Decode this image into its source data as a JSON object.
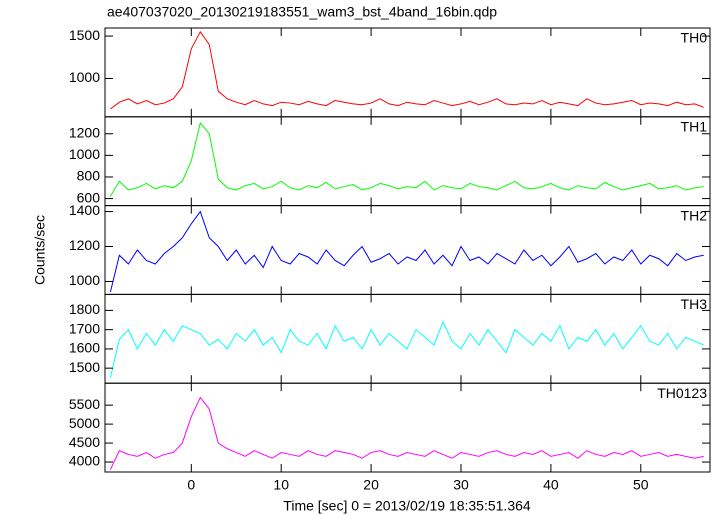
{
  "chart_data": [
    {
      "type": "line",
      "title": "ae407037020_20130219183551_wam3_bst_4band_16bin.qdp",
      "x": [
        -9,
        -8,
        -7,
        -6,
        -5,
        -4,
        -3,
        -2,
        -1,
        0,
        1,
        2,
        3,
        4,
        5,
        6,
        7,
        8,
        9,
        10,
        11,
        12,
        13,
        14,
        15,
        16,
        17,
        18,
        19,
        20,
        21,
        22,
        23,
        24,
        25,
        26,
        27,
        28,
        29,
        30,
        31,
        32,
        33,
        34,
        35,
        36,
        37,
        38,
        39,
        40,
        41,
        42,
        43,
        44,
        45,
        46,
        47,
        48,
        49,
        50,
        51,
        52,
        53,
        54,
        55,
        56,
        57
      ],
      "series": [
        {
          "name": "TH0",
          "color": "#ff0000",
          "values": [
            640,
            720,
            760,
            700,
            740,
            690,
            710,
            760,
            900,
            1350,
            1550,
            1400,
            850,
            760,
            720,
            690,
            740,
            700,
            680,
            720,
            710,
            690,
            730,
            700,
            680,
            740,
            720,
            700,
            690,
            710,
            760,
            700,
            680,
            720,
            700,
            690,
            740,
            710,
            680,
            700,
            730,
            690,
            720,
            760,
            700,
            690,
            710,
            700,
            740,
            690,
            720,
            700,
            680,
            760,
            710,
            690,
            700,
            720,
            740,
            690,
            710,
            700,
            680,
            720,
            690,
            700,
            660
          ]
        }
      ],
      "xlim": [
        -9.6,
        57.7
      ],
      "xticks": [
        0,
        10,
        20,
        30,
        40,
        50
      ],
      "ylim": [
        548,
        1595
      ],
      "yticks": [
        1000,
        1500
      ]
    },
    {
      "type": "line",
      "x": [
        -9,
        -8,
        -7,
        -6,
        -5,
        -4,
        -3,
        -2,
        -1,
        0,
        1,
        2,
        3,
        4,
        5,
        6,
        7,
        8,
        9,
        10,
        11,
        12,
        13,
        14,
        15,
        16,
        17,
        18,
        19,
        20,
        21,
        22,
        23,
        24,
        25,
        26,
        27,
        28,
        29,
        30,
        31,
        32,
        33,
        34,
        35,
        36,
        37,
        38,
        39,
        40,
        41,
        42,
        43,
        44,
        45,
        46,
        47,
        48,
        49,
        50,
        51,
        52,
        53,
        54,
        55,
        56,
        57
      ],
      "series": [
        {
          "name": "TH1",
          "color": "#00ff00",
          "values": [
            620,
            760,
            680,
            700,
            740,
            690,
            720,
            700,
            760,
            950,
            1300,
            1200,
            780,
            700,
            680,
            720,
            740,
            690,
            710,
            760,
            700,
            680,
            720,
            700,
            750,
            690,
            710,
            730,
            680,
            700,
            740,
            720,
            690,
            710,
            700,
            760,
            680,
            720,
            700,
            690,
            740,
            710,
            700,
            680,
            720,
            760,
            700,
            690,
            710,
            740,
            700,
            680,
            720,
            700,
            690,
            750,
            710,
            680,
            700,
            720,
            740,
            690,
            700,
            720,
            680,
            700,
            710
          ]
        }
      ],
      "xlim": [
        -9.6,
        57.7
      ],
      "xticks": [
        0,
        10,
        20,
        30,
        40,
        50
      ],
      "ylim": [
        535,
        1357
      ],
      "yticks": [
        600,
        800,
        1000,
        1200
      ]
    },
    {
      "type": "line",
      "y_label": "Counts/sec",
      "x": [
        -9,
        -8,
        -7,
        -6,
        -5,
        -4,
        -3,
        -2,
        -1,
        0,
        1,
        2,
        3,
        4,
        5,
        6,
        7,
        8,
        9,
        10,
        11,
        12,
        13,
        14,
        15,
        16,
        17,
        18,
        19,
        20,
        21,
        22,
        23,
        24,
        25,
        26,
        27,
        28,
        29,
        30,
        31,
        32,
        33,
        34,
        35,
        36,
        37,
        38,
        39,
        40,
        41,
        42,
        43,
        44,
        45,
        46,
        47,
        48,
        49,
        50,
        51,
        52,
        53,
        54,
        55,
        56,
        57
      ],
      "series": [
        {
          "name": "TH2",
          "color": "#0000ff",
          "values": [
            940,
            1150,
            1100,
            1180,
            1120,
            1100,
            1160,
            1200,
            1250,
            1330,
            1400,
            1250,
            1200,
            1120,
            1180,
            1100,
            1150,
            1080,
            1200,
            1120,
            1100,
            1160,
            1140,
            1100,
            1180,
            1120,
            1090,
            1150,
            1200,
            1110,
            1130,
            1160,
            1100,
            1140,
            1120,
            1180,
            1100,
            1150,
            1090,
            1200,
            1120,
            1140,
            1100,
            1160,
            1130,
            1100,
            1180,
            1120,
            1150,
            1090,
            1140,
            1200,
            1110,
            1130,
            1160,
            1100,
            1140,
            1120,
            1180,
            1100,
            1150,
            1130,
            1090,
            1160,
            1120,
            1140,
            1150
          ]
        }
      ],
      "xlim": [
        -9.6,
        57.7
      ],
      "xticks": [
        0,
        10,
        20,
        30,
        40,
        50
      ],
      "ylim": [
        926,
        1434
      ],
      "yticks": [
        1000,
        1200,
        1400
      ]
    },
    {
      "type": "line",
      "x": [
        -9,
        -8,
        -7,
        -6,
        -5,
        -4,
        -3,
        -2,
        -1,
        0,
        1,
        2,
        3,
        4,
        5,
        6,
        7,
        8,
        9,
        10,
        11,
        12,
        13,
        14,
        15,
        16,
        17,
        18,
        19,
        20,
        21,
        22,
        23,
        24,
        25,
        26,
        27,
        28,
        29,
        30,
        31,
        32,
        33,
        34,
        35,
        36,
        37,
        38,
        39,
        40,
        41,
        42,
        43,
        44,
        45,
        46,
        47,
        48,
        49,
        50,
        51,
        52,
        53,
        54,
        55,
        56,
        57
      ],
      "series": [
        {
          "name": "TH3",
          "color": "#00ffff",
          "values": [
            1450,
            1650,
            1700,
            1600,
            1680,
            1620,
            1700,
            1640,
            1720,
            1700,
            1680,
            1620,
            1650,
            1600,
            1680,
            1640,
            1700,
            1620,
            1660,
            1580,
            1700,
            1640,
            1620,
            1680,
            1600,
            1720,
            1640,
            1660,
            1600,
            1700,
            1620,
            1680,
            1640,
            1600,
            1700,
            1660,
            1620,
            1740,
            1640,
            1600,
            1680,
            1620,
            1700,
            1640,
            1580,
            1700,
            1660,
            1620,
            1680,
            1640,
            1720,
            1600,
            1660,
            1640,
            1700,
            1620,
            1680,
            1600,
            1660,
            1720,
            1640,
            1620,
            1680,
            1600,
            1660,
            1640,
            1620
          ]
        }
      ],
      "xlim": [
        -9.6,
        57.7
      ],
      "xticks": [
        0,
        10,
        20,
        30,
        40,
        50
      ],
      "ylim": [
        1422,
        1883
      ],
      "yticks": [
        1500,
        1600,
        1700,
        1800
      ]
    },
    {
      "type": "line",
      "x_label": "Time [sec] 0 = 2013/02/19 18:35:51.364",
      "x": [
        -9,
        -8,
        -7,
        -6,
        -5,
        -4,
        -3,
        -2,
        -1,
        0,
        1,
        2,
        3,
        4,
        5,
        6,
        7,
        8,
        9,
        10,
        11,
        12,
        13,
        14,
        15,
        16,
        17,
        18,
        19,
        20,
        21,
        22,
        23,
        24,
        25,
        26,
        27,
        28,
        29,
        30,
        31,
        32,
        33,
        34,
        35,
        36,
        37,
        38,
        39,
        40,
        41,
        42,
        43,
        44,
        45,
        46,
        47,
        48,
        49,
        50,
        51,
        52,
        53,
        54,
        55,
        56,
        57
      ],
      "series": [
        {
          "name": "TH0123",
          "color": "#ff00ff",
          "values": [
            3800,
            4300,
            4200,
            4150,
            4250,
            4100,
            4200,
            4250,
            4500,
            5200,
            5700,
            5400,
            4500,
            4350,
            4250,
            4150,
            4300,
            4200,
            4100,
            4250,
            4200,
            4150,
            4300,
            4200,
            4150,
            4300,
            4250,
            4200,
            4100,
            4250,
            4300,
            4200,
            4150,
            4250,
            4200,
            4150,
            4300,
            4200,
            4100,
            4250,
            4200,
            4150,
            4250,
            4300,
            4200,
            4150,
            4250,
            4200,
            4300,
            4150,
            4200,
            4250,
            4100,
            4300,
            4200,
            4150,
            4250,
            4200,
            4300,
            4150,
            4200,
            4250,
            4150,
            4200,
            4150,
            4100,
            4150
          ]
        }
      ],
      "xlim": [
        -9.6,
        57.7
      ],
      "xticks": [
        0,
        10,
        20,
        30,
        40,
        50
      ],
      "ylim": [
        3737,
        6079
      ],
      "yticks": [
        4000,
        4500,
        5000,
        5500
      ]
    }
  ]
}
